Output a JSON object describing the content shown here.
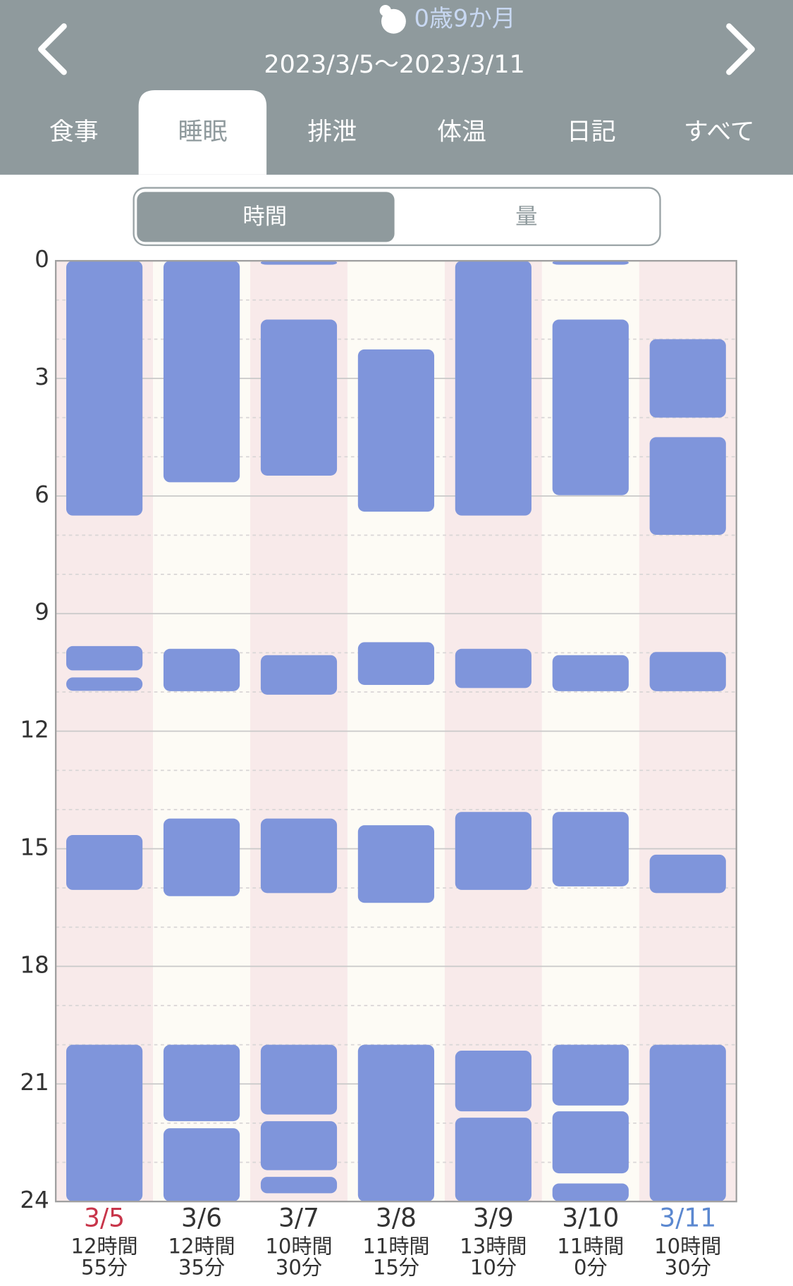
{
  "header": {
    "age": "0歳9か月",
    "range": "2023/3/5〜2023/3/11",
    "tabs": [
      "食事",
      "睡眠",
      "排泄",
      "体温",
      "日記",
      "すべて"
    ],
    "active_tab": 1
  },
  "toggle": {
    "options": [
      "時間",
      "量"
    ],
    "active": 0
  },
  "chart_data": {
    "type": "range-bar",
    "categories": [
      "3/5",
      "3/6",
      "3/7",
      "3/8",
      "3/9",
      "3/10",
      "3/11"
    ],
    "category_colors": [
      "#c8354a",
      "#333333",
      "#333333",
      "#333333",
      "#333333",
      "#333333",
      "#5b88d0"
    ],
    "total_labels": [
      [
        "12時間",
        "55分"
      ],
      [
        "12時間",
        "35分"
      ],
      [
        "10時間",
        "30分"
      ],
      [
        "11時間",
        "15分"
      ],
      [
        "13時間",
        "10分"
      ],
      [
        "11時間",
        "0分"
      ],
      [
        "10時間",
        "30分"
      ]
    ],
    "color": "#7f95db",
    "values": [
      [
        [
          0,
          6.5
        ],
        [
          9.83,
          10.45
        ],
        [
          10.63,
          10.97
        ],
        [
          14.65,
          16.05
        ],
        [
          20,
          24
        ]
      ],
      [
        [
          0,
          5.65
        ],
        [
          9.9,
          10.98
        ],
        [
          14.23,
          16.21
        ],
        [
          20,
          21.95
        ],
        [
          22.13,
          24
        ]
      ],
      [
        [
          0,
          0.1
        ],
        [
          1.5,
          5.48
        ],
        [
          10.06,
          11.07
        ],
        [
          14.23,
          16.13
        ],
        [
          20,
          21.78
        ],
        [
          21.95,
          23.2
        ],
        [
          23.37,
          23.79
        ]
      ],
      [
        [
          2.26,
          6.4
        ],
        [
          9.73,
          10.82
        ],
        [
          14.4,
          16.38
        ],
        [
          20,
          24
        ]
      ],
      [
        [
          0,
          6.5
        ],
        [
          9.9,
          10.9
        ],
        [
          14.06,
          16.05
        ],
        [
          20.15,
          21.7
        ],
        [
          21.86,
          24
        ]
      ],
      [
        [
          0,
          0.1
        ],
        [
          1.5,
          5.98
        ],
        [
          10.06,
          10.98
        ],
        [
          14.06,
          15.96
        ],
        [
          20,
          21.55
        ],
        [
          21.7,
          23.28
        ],
        [
          23.54,
          24
        ]
      ],
      [
        [
          2,
          4
        ],
        [
          4.5,
          6.99
        ],
        [
          9.98,
          10.98
        ],
        [
          15.15,
          16.13
        ],
        [
          20,
          24
        ]
      ]
    ],
    "ylim": [
      0,
      24
    ],
    "yticks": [
      0,
      3,
      6,
      9,
      12,
      15,
      18,
      21,
      24
    ],
    "minor_yticks": [
      1,
      2,
      4,
      5,
      7,
      8,
      10,
      11,
      13,
      14,
      16,
      17,
      19,
      20,
      22,
      23
    ],
    "y_inverted": true,
    "grid": true
  }
}
